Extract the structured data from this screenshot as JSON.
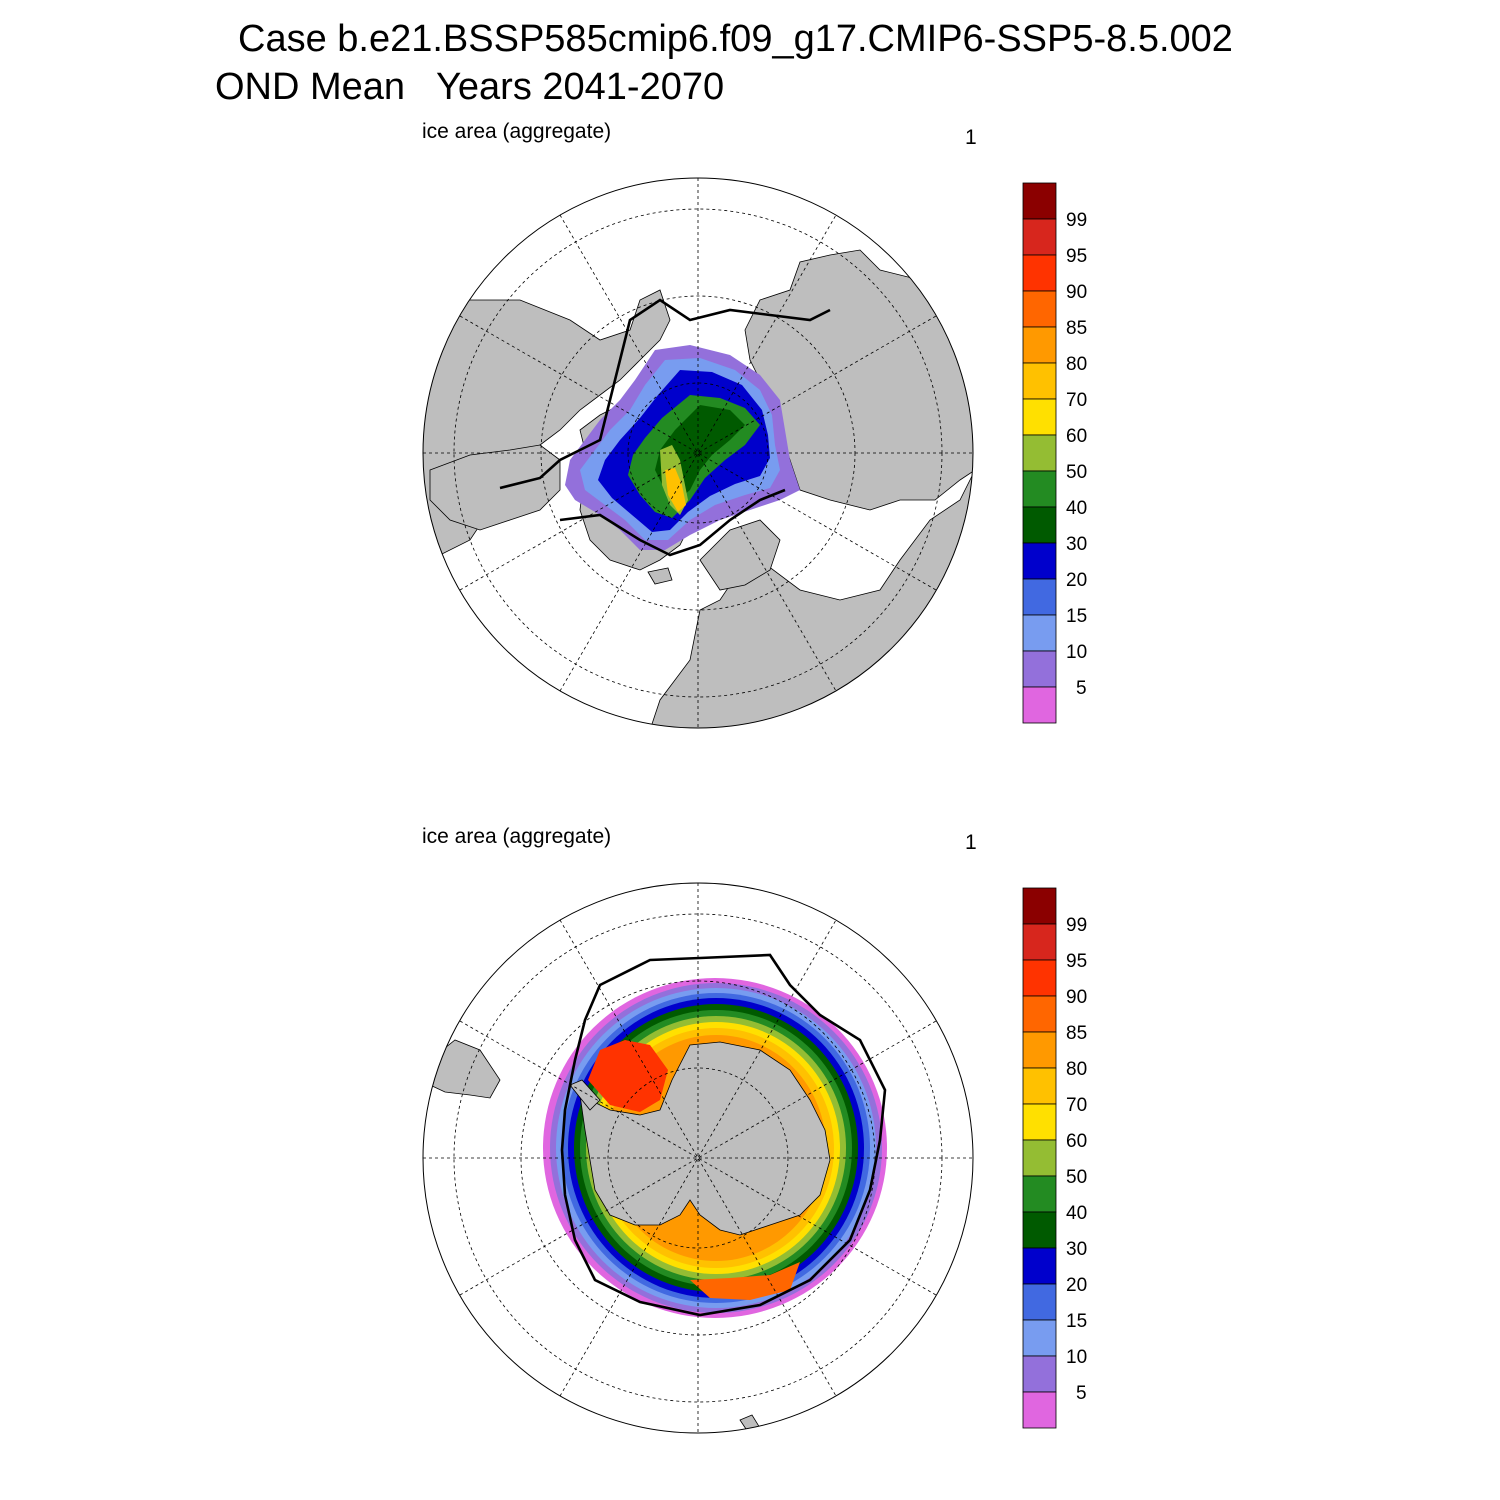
{
  "title": {
    "line1": "Case b.e21.BSSP585cmip6.f09_g17.CMIP6-SSP5-8.5.002",
    "line2": "OND Mean   Years 2041-2070"
  },
  "panels": [
    {
      "left_label": "ice area  (aggregate)",
      "right_label": "1",
      "hemisphere": "north"
    },
    {
      "left_label": "ice area  (aggregate)",
      "right_label": "1",
      "hemisphere": "south"
    }
  ],
  "colors": {
    "land": "#bebebe",
    "ocean": "#ffffff",
    "edge_contour": "#000000"
  },
  "colorbar": {
    "labels": [
      "99",
      "95",
      "90",
      "85",
      "80",
      "70",
      "60",
      "50",
      "40",
      "30",
      "20",
      "15",
      "10",
      "5"
    ],
    "colors": [
      "#8b0000",
      "#d7261d",
      "#ff3300",
      "#ff6600",
      "#ff9900",
      "#ffc100",
      "#ffe000",
      "#94bd33",
      "#238b22",
      "#005a00",
      "#0000cc",
      "#4169e1",
      "#789cf0",
      "#9370db",
      "#e066e0"
    ]
  }
}
